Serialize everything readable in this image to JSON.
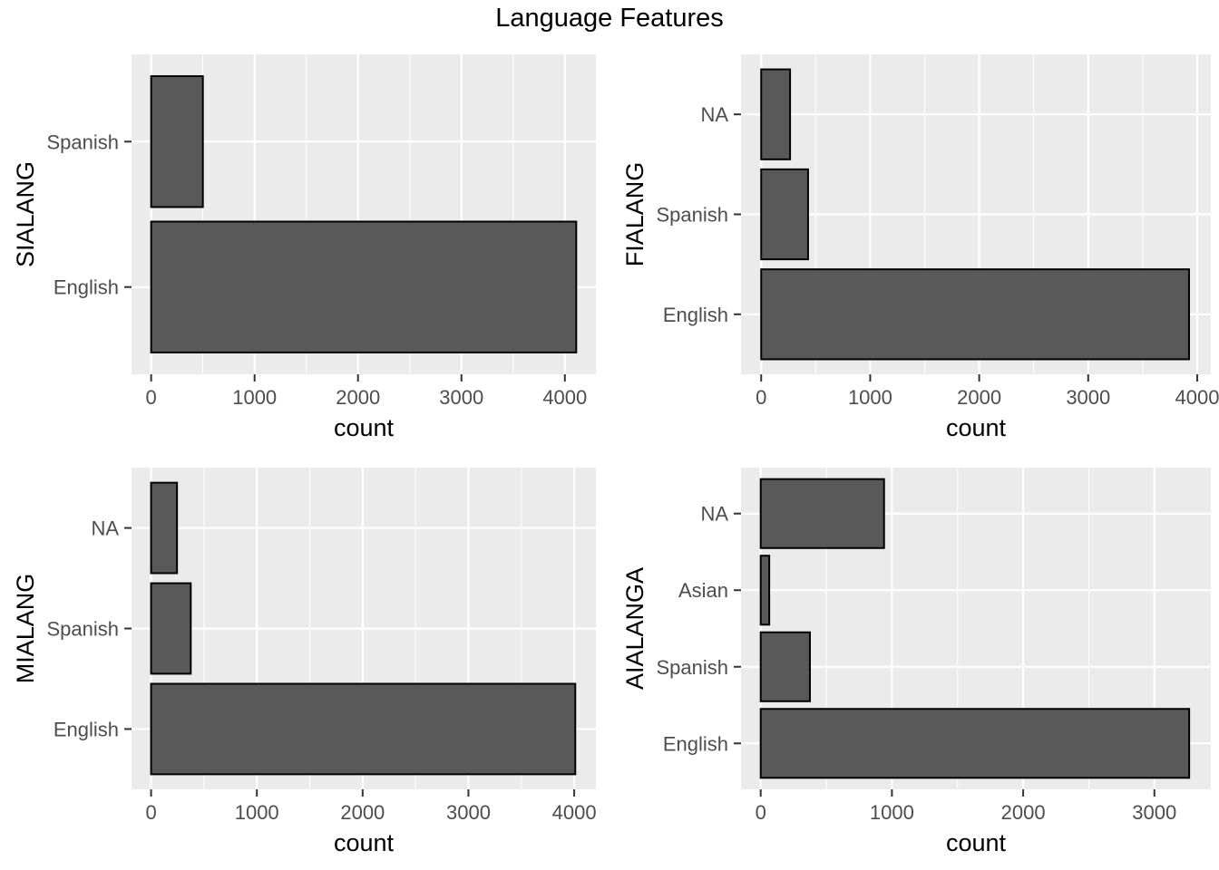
{
  "title": "Language Features",
  "colors": {
    "panel_bg": "#EBEBEB",
    "grid": "#FFFFFF",
    "bar_fill": "#595959",
    "bar_stroke": "#000000",
    "tick_text": "#4D4D4D"
  },
  "chart_data": [
    {
      "type": "bar",
      "orientation": "horizontal",
      "categories": [
        "English",
        "Spanish"
      ],
      "values": [
        4110,
        500
      ],
      "xlabel": "count",
      "ylabel": "SIALANG",
      "xlim": [
        -190,
        4300
      ],
      "xticks": [
        0,
        1000,
        2000,
        3000,
        4000
      ],
      "xtick_labels": [
        "0",
        "1000",
        "2000",
        "3000",
        "4000"
      ],
      "grid": true
    },
    {
      "type": "bar",
      "orientation": "horizontal",
      "categories": [
        "English",
        "Spanish",
        "NA"
      ],
      "values": [
        3925,
        430,
        265
      ],
      "xlabel": "count",
      "ylabel": "FIALANG",
      "xlim": [
        -185,
        4125
      ],
      "xticks": [
        0,
        1000,
        2000,
        3000,
        4000
      ],
      "xtick_labels": [
        "0",
        "1000",
        "2000",
        "3000",
        "4000"
      ],
      "grid": true
    },
    {
      "type": "bar",
      "orientation": "horizontal",
      "categories": [
        "English",
        "Spanish",
        "NA"
      ],
      "values": [
        4010,
        375,
        245
      ],
      "xlabel": "count",
      "ylabel": "MIALANG",
      "xlim": [
        -185,
        4205
      ],
      "xticks": [
        0,
        1000,
        2000,
        3000,
        4000
      ],
      "xtick_labels": [
        "0",
        "1000",
        "2000",
        "3000",
        "4000"
      ],
      "grid": true
    },
    {
      "type": "bar",
      "orientation": "horizontal",
      "categories": [
        "English",
        "Spanish",
        "Asian",
        "NA"
      ],
      "values": [
        3265,
        375,
        65,
        940
      ],
      "xlabel": "count",
      "ylabel": "AIALANGA",
      "xlim": [
        -150,
        3430
      ],
      "xticks": [
        0,
        1000,
        2000,
        3000
      ],
      "xtick_labels": [
        "0",
        "1000",
        "2000",
        "3000"
      ],
      "grid": true
    }
  ]
}
